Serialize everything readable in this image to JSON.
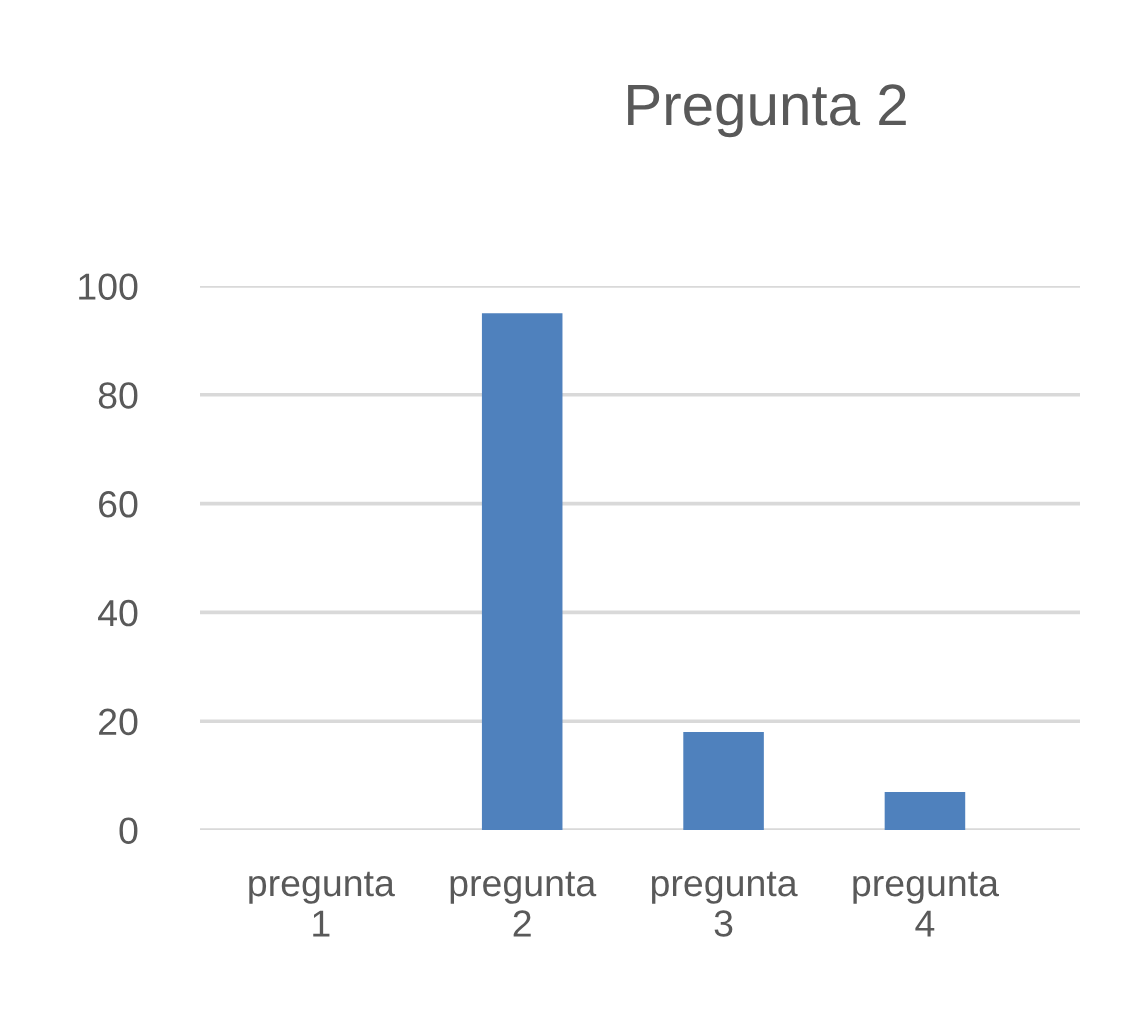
{
  "chart_data": {
    "type": "bar",
    "title": "Pregunta 2",
    "categories": [
      "pregunta 1",
      "pregunta 2",
      "pregunta 3",
      "pregunta 4"
    ],
    "values": [
      0,
      95,
      18,
      7
    ],
    "color": "#4f81bd",
    "ylim": [
      0,
      100
    ],
    "yticks": [
      0,
      20,
      40,
      60,
      80,
      100
    ],
    "grid": "y",
    "legend": false
  }
}
